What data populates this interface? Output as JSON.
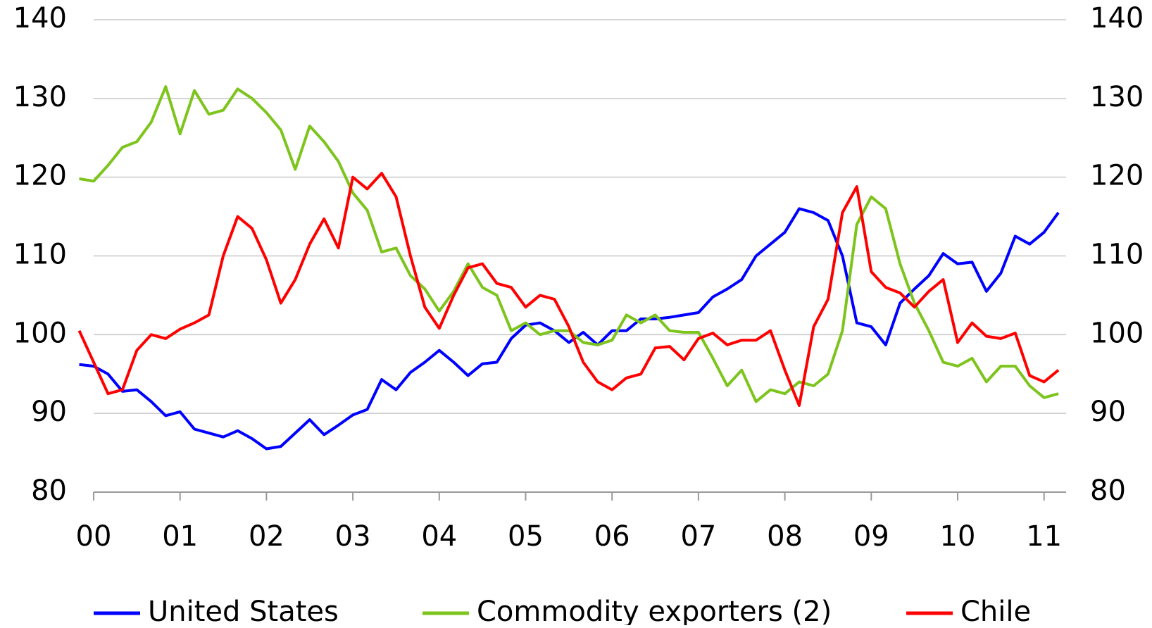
{
  "chart_data": {
    "type": "line",
    "categories": [
      null,
      "00",
      null,
      null,
      null,
      null,
      null,
      "01",
      null,
      null,
      null,
      null,
      null,
      "02",
      null,
      null,
      null,
      null,
      null,
      "03",
      null,
      null,
      null,
      null,
      null,
      "04",
      null,
      null,
      null,
      null,
      null,
      "05",
      null,
      null,
      null,
      null,
      null,
      "06",
      null,
      null,
      null,
      null,
      null,
      "07",
      null,
      null,
      null,
      null,
      null,
      "08",
      null,
      null,
      null,
      null,
      null,
      "09",
      null,
      null,
      null,
      null,
      null,
      "10",
      null,
      null,
      null,
      null,
      null,
      "11",
      null
    ],
    "series": [
      {
        "name": "United States",
        "color": "#0000ff",
        "values": [
          96.2,
          96,
          95,
          92.8,
          93,
          91.5,
          89.7,
          90.2,
          88,
          87.5,
          87,
          87.8,
          86.8,
          85.5,
          85.8,
          87.5,
          89.2,
          87.3,
          88.5,
          89.8,
          90.5,
          94.3,
          93,
          95.2,
          96.5,
          98,
          96.5,
          94.8,
          96.3,
          96.5,
          99.5,
          101.2,
          101.5,
          100.5,
          99,
          100.3,
          98.7,
          100.5,
          100.5,
          102,
          102,
          102.2,
          102.5,
          102.8,
          104.8,
          105.8,
          107,
          110,
          111.5,
          113,
          116,
          115.5,
          114.5,
          110,
          101.5,
          101,
          98.7,
          104,
          105.8,
          107.5,
          110.3,
          109,
          109.2,
          105.5,
          107.8,
          112.5,
          111.5,
          113,
          115.5
        ]
      },
      {
        "name": "Commodity exporters (2)",
        "color": "#7dc41d",
        "values": [
          119.8,
          119.5,
          121.5,
          123.8,
          124.5,
          127,
          131.5,
          125.5,
          131,
          128,
          128.5,
          131.2,
          130,
          128.2,
          126,
          121,
          126.5,
          124.5,
          122,
          118,
          115.8,
          110.5,
          111,
          107.5,
          105.8,
          103,
          105.5,
          109,
          106,
          105,
          100.5,
          101.5,
          100,
          100.5,
          100.5,
          99,
          98.7,
          99.3,
          102.5,
          101.5,
          102.5,
          100.5,
          100.3,
          100.3,
          97,
          93.5,
          95.5,
          91.5,
          93,
          92.5,
          94,
          93.5,
          95,
          100.5,
          114,
          117.5,
          116,
          109,
          104,
          100.5,
          96.5,
          96,
          97,
          94,
          96,
          96,
          93.5,
          92,
          92.5
        ]
      },
      {
        "name": "Chile",
        "color": "#ff0000",
        "values": [
          100.5,
          96.5,
          92.5,
          93,
          98,
          100,
          99.5,
          100.7,
          101.5,
          102.5,
          110,
          115,
          113.5,
          109.5,
          104,
          107,
          111.5,
          114.7,
          111,
          120,
          118.5,
          120.5,
          117.5,
          110,
          103.5,
          100.8,
          105,
          108.5,
          109,
          106.5,
          106,
          103.5,
          105,
          104.5,
          101,
          96.5,
          94,
          93,
          94.5,
          95,
          98.3,
          98.5,
          96.8,
          99.5,
          100.2,
          98.7,
          99.3,
          99.3,
          100.5,
          95.5,
          91,
          101,
          104.5,
          115.5,
          118.8,
          108,
          106,
          105.3,
          103.5,
          105.5,
          107,
          99,
          101.5,
          99.8,
          99.5,
          100.2,
          94.8,
          94,
          95.5
        ]
      }
    ],
    "ylim": [
      80,
      140
    ],
    "yticks": [
      80,
      90,
      100,
      110,
      120,
      130,
      140
    ],
    "y2lim": [
      80,
      140
    ],
    "y2ticks": [
      80,
      90,
      100,
      110,
      120,
      130,
      140
    ],
    "grid": true,
    "legend": "bottom"
  }
}
